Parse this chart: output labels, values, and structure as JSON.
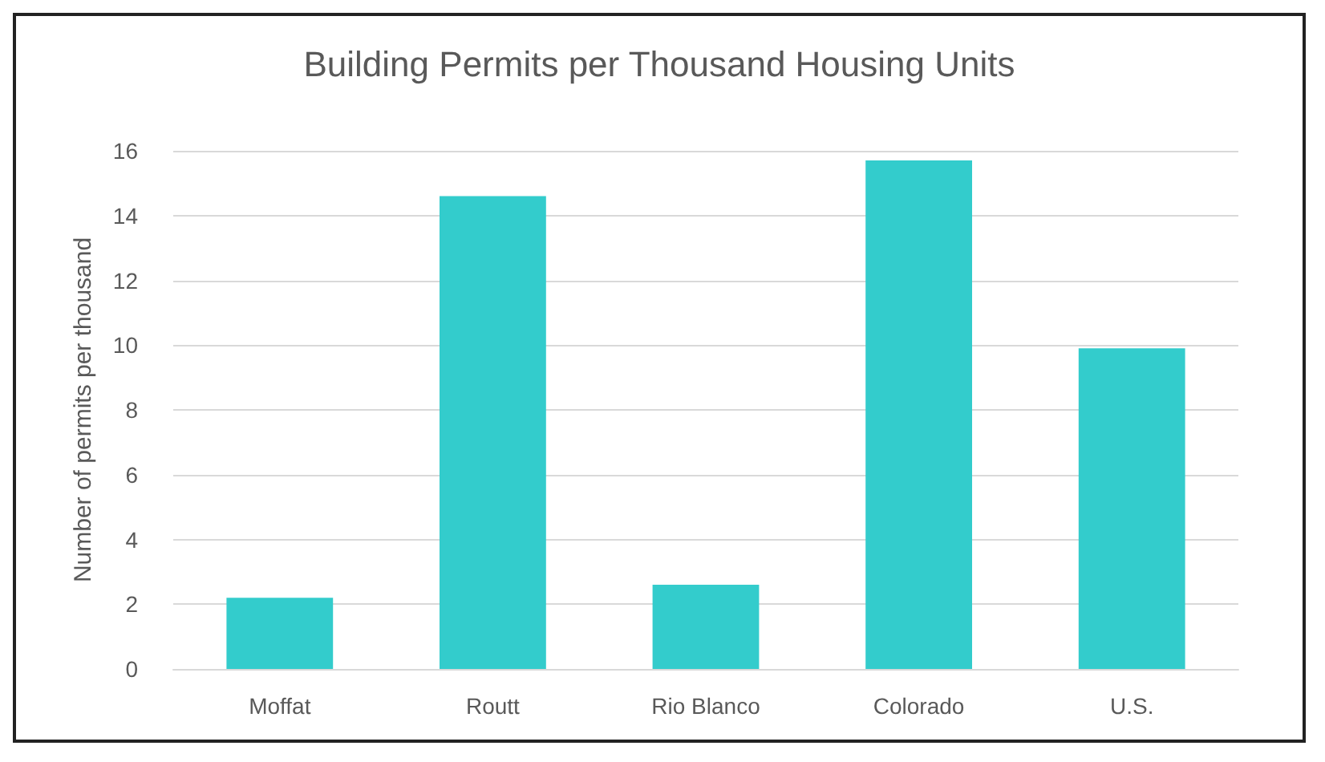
{
  "chart_data": {
    "type": "bar",
    "title": "Building Permits per Thousand Housing Units",
    "ylabel": "Number of permits per thousand",
    "categories": [
      "Moffat",
      "Routt",
      "Rio Blanco",
      "Colorado",
      "U.S."
    ],
    "values": [
      2.2,
      14.6,
      2.6,
      15.7,
      9.9
    ],
    "color": "#33cccc",
    "ylim": [
      0,
      16
    ],
    "yticks": [
      0,
      2,
      4,
      6,
      8,
      10,
      12,
      14,
      16
    ],
    "grid": "y"
  }
}
